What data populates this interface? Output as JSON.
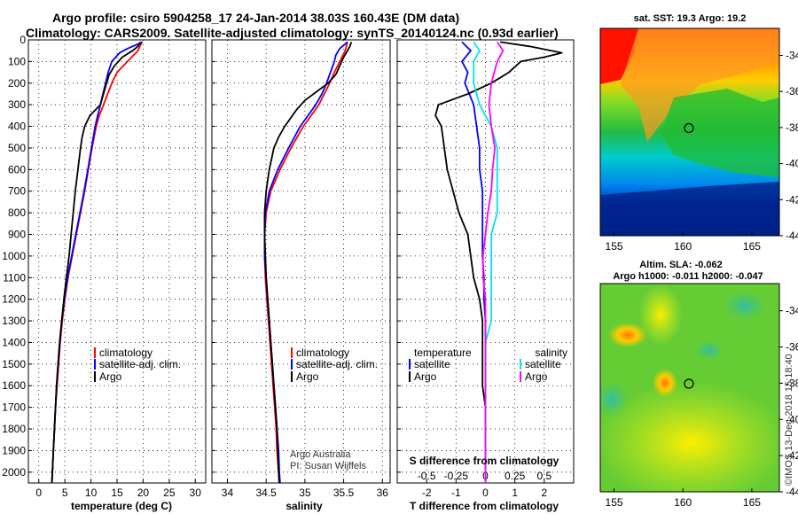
{
  "header": {
    "title_line1": "Argo profile: csiro 5904258_17 24-Jan-2014 38.03S 160.43E (DM data)",
    "title_line2": "Climatology: CARS2009. Satellite-adjusted climatology: synTS_20140124.nc (0.93d earlier)"
  },
  "colors": {
    "climatology": "#ff0000",
    "satellite": "#0000ff",
    "argo": "#000000",
    "sat_salinity": "#00e5ee",
    "argo_salinity": "#ff00ff"
  },
  "chart_data": [
    {
      "type": "line",
      "id": "temperature",
      "xlabel": "temperature (deg C)",
      "xlim": [
        -2,
        32
      ],
      "xticks": [
        0,
        5,
        10,
        15,
        20,
        25,
        30
      ],
      "ylim": [
        2050,
        0
      ],
      "yticks": [
        0,
        100,
        200,
        300,
        400,
        500,
        600,
        700,
        800,
        900,
        1000,
        1100,
        1200,
        1300,
        1400,
        1500,
        1600,
        1700,
        1800,
        1900,
        2000
      ],
      "ytick_labels": [
        "0",
        "100",
        "200",
        "300",
        "400",
        "500",
        "600",
        "700",
        "800",
        "900",
        "1000",
        "1100",
        "1200",
        "1300",
        "1400",
        "1500",
        "1600",
        "1700",
        "1800",
        "1900",
        "2000"
      ],
      "series": [
        {
          "name": "climatology",
          "color": "#ff0000",
          "depth": [
            10,
            50,
            100,
            150,
            200,
            250,
            300,
            350,
            400,
            500,
            600,
            700,
            800,
            900,
            1000,
            1100,
            1200,
            1300,
            1400,
            1500,
            1600,
            1700,
            1800,
            1900,
            2000,
            2050
          ],
          "values": [
            19.8,
            19.0,
            17.0,
            15.0,
            14.0,
            13.2,
            12.4,
            11.6,
            11.0,
            10.2,
            9.5,
            8.8,
            8.0,
            7.2,
            6.4,
            5.6,
            5.0,
            4.5,
            4.1,
            3.8,
            3.5,
            3.2,
            3.0,
            2.8,
            2.6,
            2.5
          ]
        },
        {
          "name": "satellite-adj. clim.",
          "color": "#0000ff",
          "depth": [
            10,
            40,
            60,
            100,
            150,
            200,
            250,
            300,
            350,
            400,
            500,
            600,
            700,
            800,
            900,
            1000,
            1100,
            1200,
            1300,
            1400,
            1500,
            1600,
            1700,
            1800,
            1900,
            2000,
            2050
          ],
          "values": [
            19.9,
            17.0,
            15.5,
            14.0,
            13.3,
            12.8,
            12.3,
            11.8,
            11.3,
            10.8,
            10.1,
            9.4,
            8.7,
            7.9,
            7.1,
            6.3,
            5.5,
            4.9,
            4.4,
            4.0,
            3.7,
            3.4,
            3.2,
            3.0,
            2.8,
            2.6,
            2.5
          ]
        },
        {
          "name": "Argo",
          "color": "#000000",
          "depth": [
            10,
            30,
            50,
            80,
            120,
            160,
            200,
            250,
            300,
            350,
            400,
            450,
            500,
            600,
            700,
            800,
            900,
            1000,
            1100,
            1200,
            1300,
            1400,
            1500,
            1600,
            1700,
            1800,
            1900,
            2000,
            2050
          ],
          "values": [
            19.5,
            19.0,
            18.0,
            16.0,
            14.5,
            13.5,
            13.0,
            12.4,
            11.8,
            9.8,
            8.8,
            8.3,
            8.0,
            7.5,
            7.0,
            6.6,
            6.2,
            5.8,
            5.3,
            4.8,
            4.4,
            4.0,
            3.7,
            3.4,
            3.2,
            3.0,
            2.8,
            2.6,
            2.5
          ]
        }
      ],
      "legend": [
        "climatology",
        "satellite-adj. clim.",
        "Argo"
      ]
    },
    {
      "type": "line",
      "id": "salinity",
      "xlabel": "salinity",
      "xlim": [
        33.8,
        36.1
      ],
      "xticks": [
        34,
        34.5,
        35,
        35.5,
        36
      ],
      "ylim": [
        2050,
        0
      ],
      "series": [
        {
          "name": "climatology",
          "color": "#ff0000",
          "depth": [
            10,
            50,
            100,
            150,
            200,
            250,
            300,
            350,
            400,
            500,
            600,
            700,
            800,
            900,
            1000,
            1100,
            1200,
            1300,
            1400,
            1500,
            1600,
            1700,
            1800,
            1900,
            2000,
            2050
          ],
          "values": [
            35.55,
            35.52,
            35.45,
            35.38,
            35.32,
            35.25,
            35.18,
            35.08,
            34.98,
            34.82,
            34.68,
            34.56,
            34.5,
            34.48,
            34.48,
            34.49,
            34.51,
            34.53,
            34.55,
            34.57,
            34.59,
            34.61,
            34.63,
            34.64,
            34.66,
            34.67
          ]
        },
        {
          "name": "satellite-adj. clim.",
          "color": "#0000ff",
          "depth": [
            10,
            40,
            70,
            100,
            150,
            200,
            250,
            300,
            350,
            400,
            500,
            600,
            700,
            800,
            900,
            1000,
            1100,
            1200,
            1300,
            1400,
            1500,
            1600,
            1700,
            1800,
            1900,
            2000,
            2050
          ],
          "values": [
            35.55,
            35.45,
            35.4,
            35.38,
            35.33,
            35.28,
            35.22,
            35.14,
            35.04,
            34.94,
            34.79,
            34.65,
            34.54,
            34.49,
            34.48,
            34.48,
            34.5,
            34.52,
            34.54,
            34.56,
            34.58,
            34.6,
            34.62,
            34.64,
            34.66,
            34.67,
            34.68
          ]
        },
        {
          "name": "Argo",
          "color": "#000000",
          "depth": [
            10,
            30,
            50,
            80,
            120,
            160,
            200,
            240,
            280,
            320,
            360,
            400,
            450,
            500,
            600,
            700,
            800,
            900,
            1000,
            1100,
            1200,
            1300,
            1400,
            1500,
            1600,
            1700,
            1800,
            1900,
            2000,
            2050
          ],
          "values": [
            35.6,
            35.58,
            35.55,
            35.5,
            35.45,
            35.4,
            35.3,
            35.15,
            35.0,
            34.9,
            34.82,
            34.74,
            34.66,
            34.6,
            34.54,
            34.5,
            34.48,
            34.48,
            34.49,
            34.5,
            34.52,
            34.54,
            34.56,
            34.58,
            34.6,
            34.62,
            34.64,
            34.65,
            34.66,
            34.67
          ]
        }
      ],
      "legend": [
        "climatology",
        "satellite-adj. clim.",
        "Argo"
      ],
      "note_line1": "Argo Australia",
      "note_line2": "PI: Susan Wijffels"
    },
    {
      "type": "line",
      "id": "difference",
      "xlabel": "T difference from climatology",
      "xlabel_top": "S difference from climatology",
      "xlim": [
        -3,
        3
      ],
      "xticks": [
        -2,
        -1,
        0,
        1,
        2
      ],
      "xticks_s_labels": [
        "-0.5",
        "-0.25",
        "0",
        "0.25",
        "0.5"
      ],
      "xticks_s_values": [
        -0.5,
        -0.25,
        0,
        0.25,
        0.5
      ],
      "ylim": [
        2050,
        0
      ],
      "series": [
        {
          "name": "temperature satellite",
          "color": "#0000ff",
          "depth": [
            10,
            50,
            100,
            150,
            200,
            300,
            400,
            500,
            600,
            700,
            800,
            900,
            1000,
            1100,
            1200,
            1300,
            1400,
            1500,
            1600,
            1700,
            1800,
            1900,
            2000,
            2050
          ],
          "values": [
            -0.8,
            -0.5,
            -0.8,
            -0.6,
            -0.7,
            -0.4,
            -0.3,
            -0.2,
            -0.2,
            -0.1,
            -0.1,
            -0.1,
            -0.1,
            -0.05,
            -0.05,
            0,
            0,
            0,
            0,
            0,
            0,
            0,
            0,
            0
          ]
        },
        {
          "name": "temperature Argo",
          "color": "#000000",
          "depth": [
            10,
            30,
            60,
            80,
            100,
            150,
            200,
            250,
            280,
            300,
            350,
            400,
            500,
            600,
            700,
            800,
            900,
            1000,
            1100,
            1200,
            1300,
            1400,
            1500,
            1600,
            1700,
            1800,
            1900,
            2000,
            2050
          ],
          "values": [
            0.5,
            1.5,
            2.6,
            2.0,
            1.2,
            0.8,
            0.2,
            -0.6,
            -1.2,
            -1.6,
            -1.7,
            -1.5,
            -1.4,
            -1.3,
            -1.1,
            -0.9,
            -0.6,
            -0.5,
            -0.4,
            -0.2,
            -0.1,
            -0.1,
            -0.1,
            -0.1,
            0,
            0,
            0,
            0,
            0
          ]
        },
        {
          "name": "salinity satellite",
          "color": "#00e5ee",
          "depth": [
            10,
            50,
            100,
            200,
            300,
            400,
            500,
            600,
            700,
            800,
            900,
            1000,
            1100,
            1200,
            1300,
            1400,
            1500,
            1600,
            1700,
            1800,
            1900,
            2000,
            2050
          ],
          "values": [
            -0.1,
            -0.05,
            -0.1,
            -0.1,
            -0.05,
            0.05,
            0.1,
            0.1,
            0.1,
            0.1,
            0.05,
            0.05,
            0.05,
            0.05,
            0.05,
            0.0,
            0.0,
            0.0,
            0.0,
            0.0,
            0.0,
            0.0,
            0.0
          ]
        },
        {
          "name": "salinity Argo",
          "color": "#ff00ff",
          "depth": [
            10,
            50,
            100,
            200,
            300,
            400,
            500,
            600,
            700,
            800,
            900,
            1000,
            1100,
            1200,
            1300,
            1400,
            1500,
            1600,
            1700,
            1800,
            1900,
            2000,
            2050
          ],
          "values": [
            0.1,
            0.15,
            0.1,
            0.05,
            0.03,
            0.05,
            0.08,
            0.06,
            0.05,
            0.02,
            0.0,
            -0.02,
            -0.02,
            0.0,
            0.0,
            0.0,
            0.0,
            0.0,
            0.0,
            0.0,
            0.0,
            0.0,
            0.0
          ]
        }
      ],
      "legend_left_title": "temperature",
      "legend_right_title": "salinity",
      "legend_left": [
        "satellite",
        "Argo"
      ],
      "legend_right": [
        "satellite",
        "Argo"
      ]
    }
  ],
  "maps": [
    {
      "id": "sst",
      "title": "sat. SST: 19.3 Argo: 19.2",
      "xlim": [
        154,
        167
      ],
      "ylim": [
        -44,
        -32.5
      ],
      "xticks": [
        155,
        160,
        165
      ],
      "yticks": [
        -34,
        -36,
        -38,
        -40,
        -42,
        -44
      ],
      "marker": {
        "lon": 160.43,
        "lat": -38.03
      }
    },
    {
      "id": "sla",
      "title_line1": "Altim. SLA: -0.062",
      "title_line2": "Argo h1000: -0.011 h2000: -0.047",
      "xlim": [
        154,
        167
      ],
      "ylim": [
        -44,
        -32.5
      ],
      "xticks": [
        155,
        160,
        165
      ],
      "yticks": [
        -34,
        -36,
        -38,
        -40,
        -42,
        -44
      ],
      "marker": {
        "lon": 160.43,
        "lat": -38.03
      }
    }
  ],
  "watermark": "©IMOS 13-Dec-2018 15:18:40"
}
